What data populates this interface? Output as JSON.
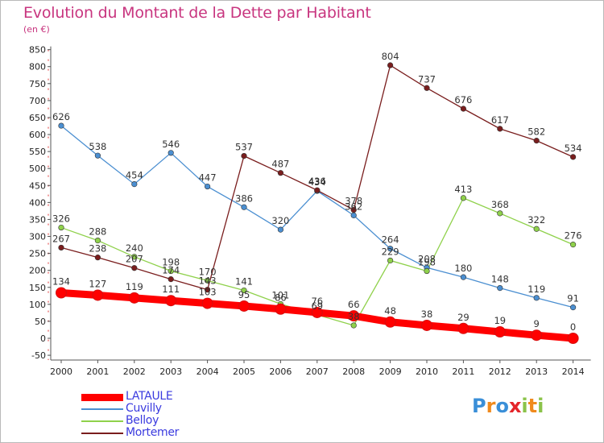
{
  "header": {
    "title": "Evolution du Montant de la Dette par Habitant",
    "unit": "(en €)"
  },
  "chart_data": {
    "type": "line",
    "x": [
      "2000",
      "2001",
      "2002",
      "2003",
      "2004",
      "2005",
      "2006",
      "2007",
      "2008",
      "2009",
      "2010",
      "2011",
      "2012",
      "2013",
      "2014"
    ],
    "ylim": [
      -50,
      850
    ],
    "yticks": [
      -50,
      0,
      50,
      100,
      150,
      200,
      250,
      300,
      350,
      400,
      450,
      500,
      550,
      600,
      650,
      700,
      750,
      800,
      850
    ],
    "grid": false,
    "legend_position": "bottom-left",
    "series": [
      {
        "name": "LATAULE",
        "color": "#ff0000",
        "values": [
          134,
          127,
          119,
          111,
          103,
          95,
          86,
          76,
          66,
          48,
          38,
          29,
          19,
          9,
          0
        ],
        "labels": [
          "134",
          "127",
          "119",
          "111",
          "103",
          "95",
          "86",
          "76",
          "66",
          "48",
          "38",
          "29",
          "19",
          "9",
          "0"
        ]
      },
      {
        "name": "Cuvilly",
        "color": "#4b8fd1",
        "values": [
          626,
          538,
          454,
          546,
          447,
          386,
          320,
          434,
          362,
          264,
          208,
          180,
          148,
          119,
          91
        ],
        "labels": [
          "626",
          "538",
          "454",
          "546",
          "447",
          "386",
          "320",
          "434",
          "362",
          "264",
          "208",
          "180",
          "148",
          "119",
          "91"
        ]
      },
      {
        "name": "Belloy",
        "color": "#8fd14b",
        "values": [
          326,
          288,
          240,
          198,
          170,
          141,
          101,
          69,
          38,
          229,
          198,
          413,
          368,
          322,
          276
        ],
        "labels": [
          "326",
          "288",
          "240",
          "198",
          "170",
          "141",
          "101",
          "69",
          "38",
          "229",
          "198",
          "413",
          "368",
          "322",
          "276"
        ]
      },
      {
        "name": "Mortemer",
        "color": "#7a1e1e",
        "values": [
          267,
          238,
          207,
          174,
          143,
          537,
          487,
          436,
          378,
          804,
          737,
          676,
          617,
          582,
          534
        ],
        "labels": [
          "267",
          "238",
          "207",
          "174",
          "143",
          "537",
          "487",
          "436",
          "378",
          "804",
          "737",
          "676",
          "617",
          "582",
          "534"
        ]
      }
    ]
  },
  "logo": {
    "letters": [
      "P",
      "r",
      "o",
      "x",
      "i",
      "t",
      "i"
    ],
    "colors": [
      "#3a8fd8",
      "#f08a1d",
      "#3a8fd8",
      "#e4252a",
      "#8bc34a",
      "#f08a1d",
      "#8bc34a"
    ]
  }
}
